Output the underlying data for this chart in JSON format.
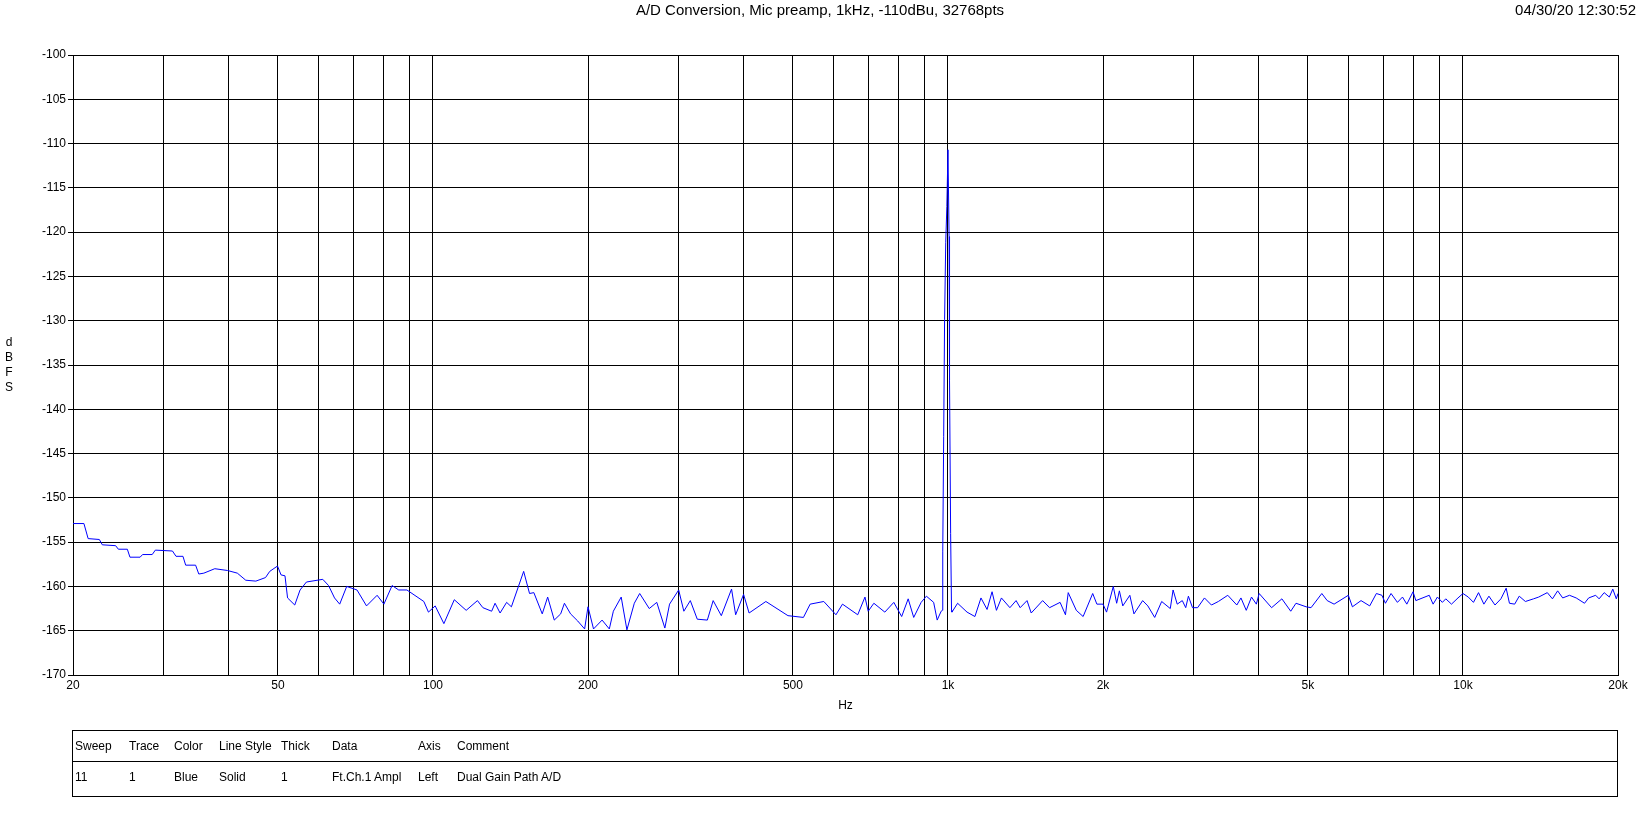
{
  "chart_data": {
    "type": "line",
    "title": "A/D Conversion, Mic preamp, 1kHz, -110dBu, 32768pts",
    "xlabel": "Hz",
    "ylabel": "dBFS",
    "annotations": [
      "04/30/20 12:30:52",
      "Sweep",
      "Trace",
      "Color",
      "Line Style",
      "Thick",
      "Data",
      "Axis",
      "Comment",
      "11",
      "1",
      "Blue",
      "Solid",
      "1",
      "Ft.Ch.1 Ampl",
      "Left",
      "Dual Gain Path A/D"
    ],
    "log": "x",
    "grid": true,
    "legend": false,
    "marker": "none",
    "line_style": "solid",
    "xlim": [
      20,
      20000
    ],
    "ylim": [
      -170,
      -100
    ],
    "xticks": [
      20,
      {
        "value": 30,
        "label": null
      },
      {
        "value": 40,
        "label": null
      },
      50,
      {
        "value": 60,
        "label": null
      },
      {
        "value": 70,
        "label": null
      },
      {
        "value": 80,
        "label": null
      },
      {
        "value": 90,
        "label": null
      },
      100,
      200,
      {
        "value": 300,
        "label": null
      },
      {
        "value": 400,
        "label": null
      },
      500,
      {
        "value": 600,
        "label": null
      },
      {
        "value": 700,
        "label": null
      },
      {
        "value": 800,
        "label": null
      },
      {
        "value": 900,
        "label": null
      },
      {
        "value": 1000,
        "label": "1k"
      },
      {
        "value": 2000,
        "label": "2k"
      },
      {
        "value": 3000,
        "label": null
      },
      {
        "value": 4000,
        "label": null
      },
      {
        "value": 5000,
        "label": "5k"
      },
      {
        "value": 6000,
        "label": null
      },
      {
        "value": 7000,
        "label": null
      },
      {
        "value": 8000,
        "label": null
      },
      {
        "value": 9000,
        "label": null
      },
      {
        "value": 10000,
        "label": "10k"
      },
      {
        "value": 20000,
        "label": "20k"
      }
    ],
    "yticks": [
      -170,
      -165,
      -160,
      -155,
      -150,
      -145,
      -140,
      -135,
      -130,
      -125,
      -120,
      -115,
      -110,
      -105,
      -100
    ],
    "series": [
      {
        "color": "#0000ff",
        "x": [
          20,
          21,
          21.4,
          22.5,
          22.8,
          24.2,
          24.5,
          25.5,
          25.8,
          27,
          27.3,
          28.5,
          28.9,
          31.2,
          31.7,
          32.7,
          33.1,
          34.6,
          35.1,
          35.9,
          37.7,
          39.9,
          41.7,
          43.3,
          45.3,
          47.3,
          48.2,
          49.9,
          50.7,
          51.6,
          52.2,
          53.9,
          55.2,
          56.8,
          61.1,
          62.7,
          64.4,
          65.9,
          68,
          71.2,
          74.3,
          77.9,
          80.3,
          83.3,
          85.8,
          89,
          96,
          98,
          101,
          105,
          110,
          116,
          122,
          125,
          130,
          132,
          135,
          139,
          142,
          150,
          154,
          157,
          163,
          167,
          172,
          177,
          180,
          185,
          191,
          197,
          200,
          205,
          213,
          220,
          224,
          232,
          238,
          246,
          252,
          263,
          272,
          282,
          288,
          300,
          307,
          316,
          326,
          341,
          350,
          363,
          380,
          387,
          401,
          411,
          443,
          489,
          524,
          540,
          574,
          606,
          624,
          668,
          690,
          700,
          718,
          754,
          785,
          813,
          837,
          858,
          887,
          908,
          938,
          953,
          970,
          975,
          977,
          981,
          985,
          990,
          995,
          1000,
          1005,
          1007,
          1012,
          1016,
          1018,
          1044,
          1089,
          1128,
          1159,
          1191,
          1218,
          1242,
          1270,
          1319,
          1356,
          1381,
          1424,
          1451,
          1527,
          1575,
          1651,
          1691,
          1712,
          1775,
          1830,
          1910,
          1946,
          2000,
          2032,
          2094,
          2126,
          2152,
          2185,
          2255,
          2297,
          2388,
          2444,
          2520,
          2600,
          2702,
          2736,
          2787,
          2851,
          2895,
          2930,
          2984,
          3053,
          3148,
          3248,
          3350,
          3494,
          3638,
          3706,
          3795,
          3885,
          3970,
          4020,
          4250,
          4450,
          4630,
          4740,
          4960,
          5070,
          5320,
          5450,
          5620,
          5990,
          6100,
          6340,
          6590,
          6790,
          6960,
          7070,
          7250,
          7460,
          7630,
          7780,
          8000,
          8100,
          8600,
          8750,
          8920,
          9120,
          9260,
          9500,
          9780,
          10000,
          10240,
          10480,
          10720,
          10980,
          11230,
          11540,
          11850,
          12130,
          12310,
          12600,
          12860,
          13220,
          13710,
          14030,
          14580,
          14920,
          15270,
          15620,
          16100,
          16590,
          17220,
          17540,
          18100,
          18380,
          18800,
          19240,
          19540,
          19850,
          20000
        ],
        "values": [
          -152.9,
          -152.9,
          -154.6,
          -154.7,
          -155.3,
          -155.4,
          -155.8,
          -155.8,
          -156.7,
          -156.7,
          -156.4,
          -156.4,
          -155.9,
          -156,
          -156.6,
          -156.6,
          -157.6,
          -157.6,
          -158.6,
          -158.5,
          -158,
          -158.2,
          -158.5,
          -159.3,
          -159.4,
          -159,
          -158.3,
          -157.7,
          -158.7,
          -158.8,
          -161.3,
          -162.1,
          -160.4,
          -159.5,
          -159.2,
          -159.9,
          -161.3,
          -162,
          -160,
          -160.4,
          -162.2,
          -161,
          -162,
          -159.9,
          -160.4,
          -160.4,
          -161.7,
          -162.9,
          -162.2,
          -164.2,
          -161.5,
          -162.7,
          -161.6,
          -162.4,
          -162.8,
          -161.9,
          -163,
          -161.8,
          -162.3,
          -158.3,
          -160.8,
          -160.7,
          -163.1,
          -161.2,
          -163.8,
          -163.1,
          -161.9,
          -163.1,
          -163.9,
          -164.8,
          -162.3,
          -164.8,
          -163.8,
          -164.8,
          -162.8,
          -161.2,
          -164.9,
          -161.9,
          -160.8,
          -162.5,
          -161.8,
          -164.7,
          -162,
          -160.4,
          -162.8,
          -161.6,
          -163.7,
          -163.8,
          -161.6,
          -163.3,
          -160.3,
          -163.2,
          -160.9,
          -163,
          -161.7,
          -163.3,
          -163.5,
          -162,
          -161.7,
          -163.2,
          -162,
          -163.2,
          -161.2,
          -162.8,
          -161.9,
          -162.9,
          -161.8,
          -163.4,
          -161.4,
          -163.5,
          -161.8,
          -161.1,
          -161.8,
          -163.8,
          -162.8,
          -162.7,
          -156.1,
          -143.1,
          -129.9,
          -121.2,
          -117.1,
          -110.7,
          -120.5,
          -136.7,
          -154,
          -162.7,
          -162.9,
          -161.9,
          -162.9,
          -163.4,
          -161.3,
          -162.6,
          -160.6,
          -162.7,
          -161.3,
          -162.4,
          -161.6,
          -162.4,
          -161.6,
          -163,
          -161.6,
          -162.4,
          -161.8,
          -163.2,
          -160.7,
          -162.7,
          -163.4,
          -160.8,
          -162,
          -162,
          -162.9,
          -160,
          -161.9,
          -160.5,
          -162.2,
          -161,
          -163.1,
          -161.6,
          -162.2,
          -163.5,
          -161.7,
          -162.5,
          -160.4,
          -162,
          -161.6,
          -162.4,
          -161.1,
          -162.4,
          -162.4,
          -161.3,
          -162.1,
          -161.7,
          -161,
          -162.1,
          -161.3,
          -162.7,
          -161.2,
          -162,
          -160.8,
          -162.4,
          -161.4,
          -162.8,
          -161.9,
          -162.3,
          -162.4,
          -160.8,
          -161.6,
          -162,
          -161,
          -162.3,
          -161.6,
          -162.2,
          -160.8,
          -161,
          -161.9,
          -160.8,
          -161.8,
          -161.2,
          -162,
          -160.6,
          -161.6,
          -161,
          -162,
          -161.2,
          -161.8,
          -161.4,
          -162,
          -161.3,
          -160.8,
          -161.2,
          -161.8,
          -160.7,
          -162,
          -161.1,
          -162.1,
          -161.4,
          -160.2,
          -161.9,
          -162,
          -161.1,
          -161.7,
          -161.4,
          -161.2,
          -160.7,
          -161.4,
          -160.5,
          -161.3,
          -161,
          -161.3,
          -161.9,
          -161.3,
          -161,
          -161.4,
          -160.7,
          -161.2,
          -160.3,
          -161.4,
          -160.8
        ]
      }
    ]
  }
}
